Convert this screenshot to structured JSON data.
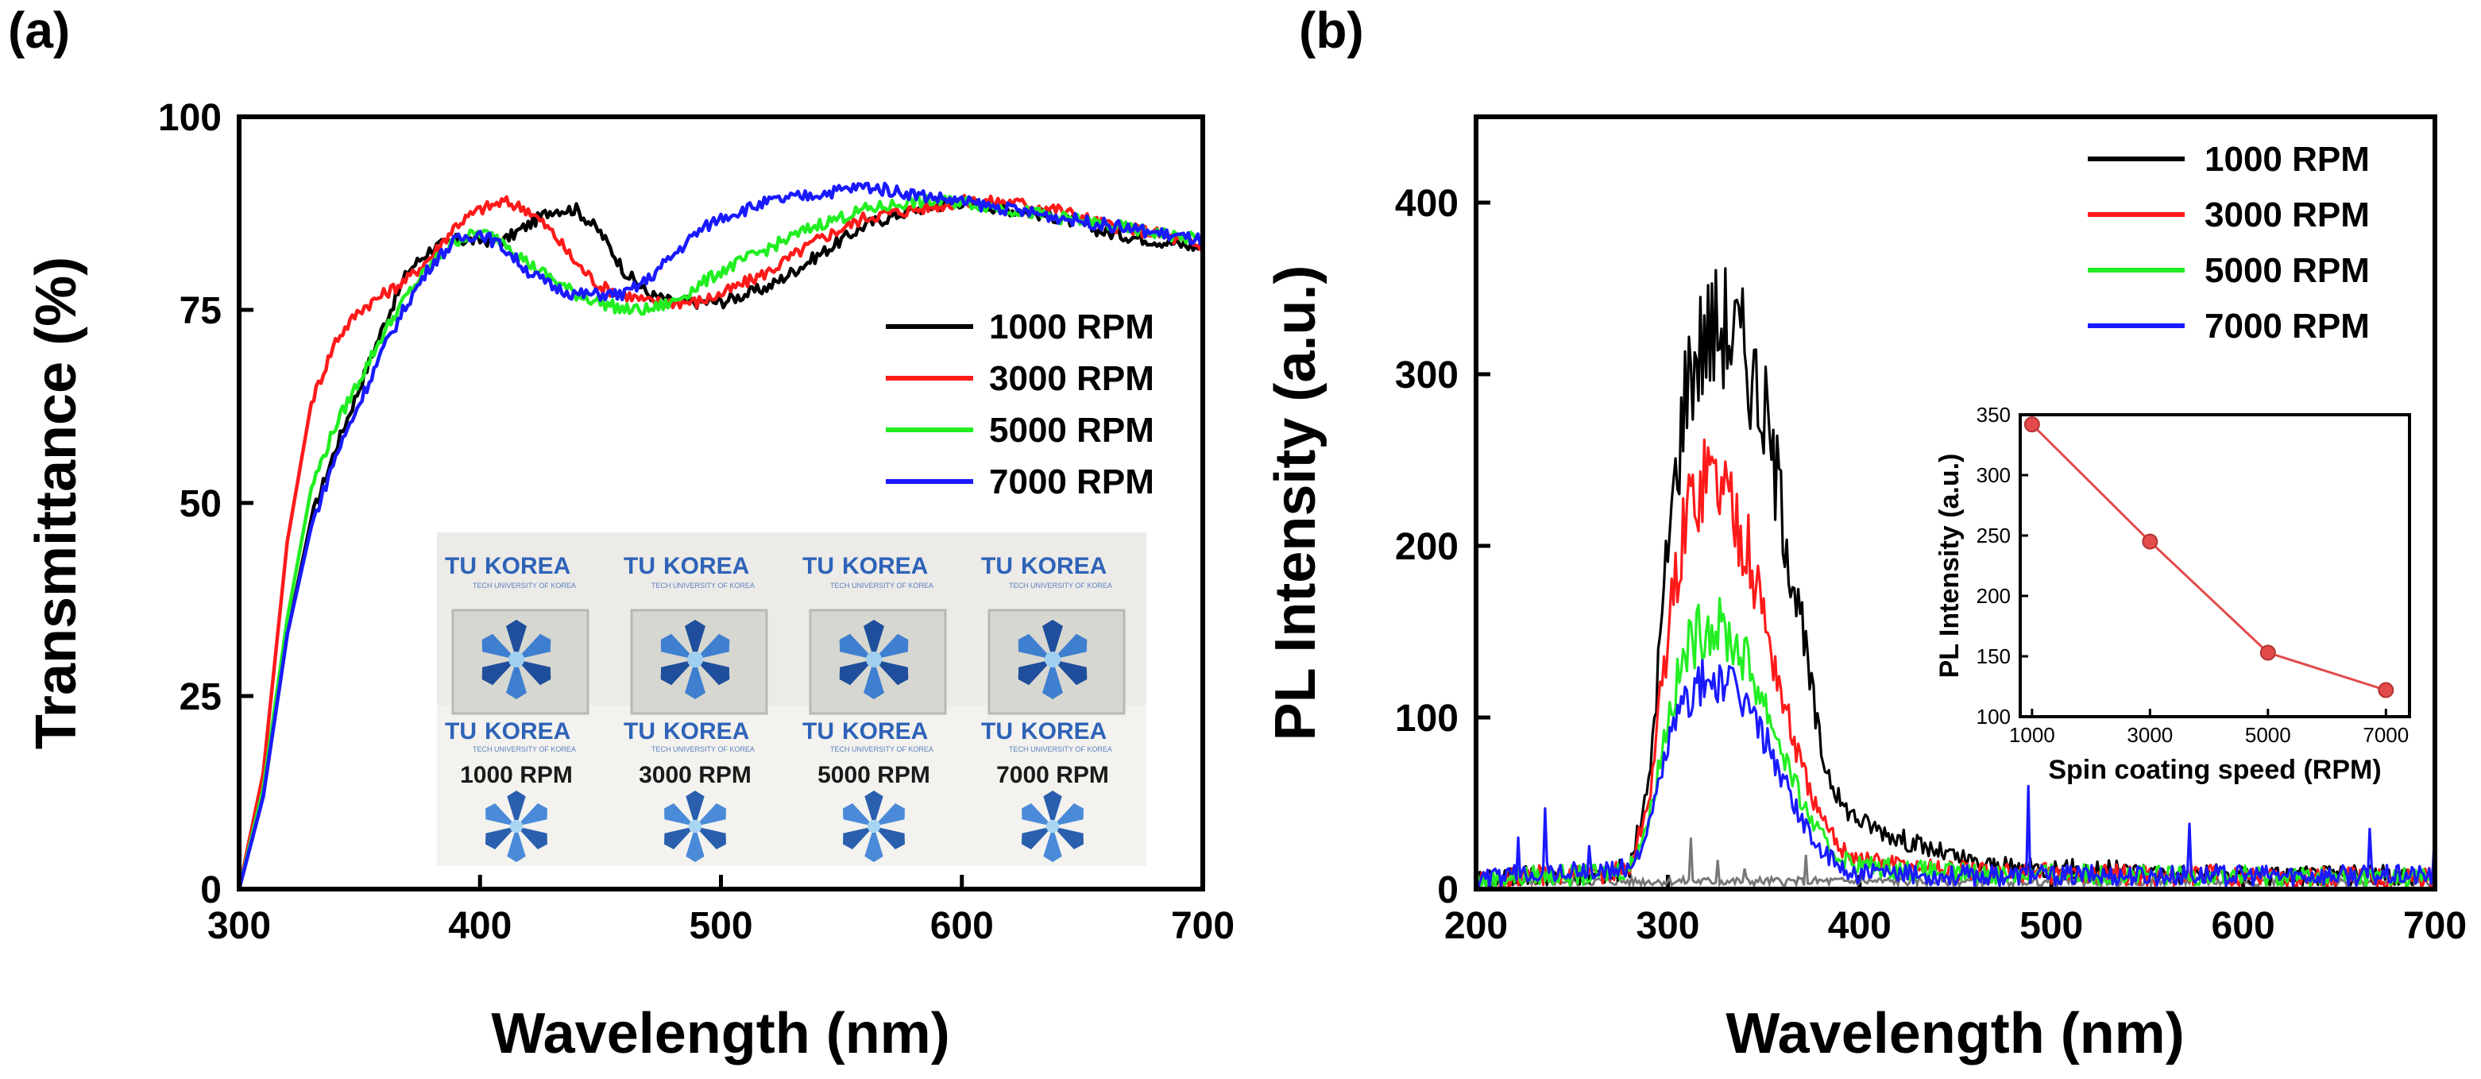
{
  "colors": {
    "series": [
      "#000000",
      "#ff1a1a",
      "#22ee22",
      "#1a1aff"
    ],
    "baseline": "#777777",
    "inset_line": "#e34b4b",
    "logo_blue": "#2e63b8"
  },
  "chart_data": [
    {
      "panel": "(a)",
      "type": "line",
      "xlabel": "Wavelength (nm)",
      "ylabel": "Transmittance (%)",
      "xlim": [
        300,
        700
      ],
      "ylim": [
        0,
        100
      ],
      "xticks": [
        300,
        400,
        500,
        600,
        700
      ],
      "yticks": [
        0,
        25,
        50,
        75,
        100
      ],
      "legend_position": "center-right",
      "series": [
        {
          "name": "1000 RPM",
          "x": [
            300,
            310,
            320,
            330,
            340,
            350,
            360,
            370,
            380,
            390,
            400,
            410,
            420,
            430,
            440,
            450,
            460,
            470,
            480,
            490,
            500,
            520,
            540,
            560,
            580,
            600,
            620,
            640,
            660,
            680,
            700
          ],
          "y": [
            0,
            12,
            33,
            48,
            57,
            65,
            73,
            80,
            83,
            84,
            84,
            84,
            86,
            88,
            88,
            85,
            80,
            77,
            76,
            76,
            76,
            78,
            82,
            86,
            88,
            89,
            88,
            87,
            85,
            84,
            83
          ]
        },
        {
          "name": "3000 RPM",
          "x": [
            300,
            310,
            320,
            330,
            340,
            350,
            360,
            370,
            380,
            390,
            400,
            410,
            420,
            430,
            440,
            450,
            460,
            470,
            480,
            490,
            500,
            520,
            540,
            560,
            580,
            600,
            620,
            640,
            660,
            680,
            700
          ],
          "y": [
            0,
            15,
            45,
            63,
            71,
            75,
            77,
            79,
            82,
            86,
            88,
            89,
            88,
            85,
            81,
            78,
            77,
            76,
            76,
            76,
            77,
            80,
            84,
            87,
            88,
            89,
            89,
            88,
            86,
            85,
            83
          ]
        },
        {
          "name": "5000 RPM",
          "x": [
            300,
            310,
            320,
            330,
            340,
            350,
            360,
            370,
            380,
            390,
            400,
            410,
            420,
            430,
            440,
            450,
            460,
            470,
            480,
            490,
            500,
            520,
            540,
            560,
            580,
            600,
            620,
            640,
            660,
            680,
            700
          ],
          "y": [
            0,
            13,
            35,
            52,
            60,
            66,
            72,
            77,
            81,
            84,
            85,
            84,
            81,
            79,
            77,
            76,
            75,
            75,
            76,
            78,
            80,
            83,
            86,
            88,
            89,
            89,
            88,
            87,
            86,
            85,
            84
          ]
        },
        {
          "name": "7000 RPM",
          "x": [
            300,
            310,
            320,
            330,
            340,
            350,
            360,
            370,
            380,
            390,
            400,
            410,
            420,
            430,
            440,
            450,
            460,
            470,
            480,
            490,
            500,
            520,
            540,
            560,
            580,
            600,
            620,
            640,
            660,
            680,
            700
          ],
          "y": [
            0,
            12,
            33,
            47,
            56,
            63,
            70,
            76,
            81,
            84,
            85,
            83,
            80,
            78,
            77,
            77,
            77,
            79,
            82,
            85,
            87,
            89,
            90,
            91,
            90,
            89,
            88,
            87,
            86,
            85,
            84
          ]
        }
      ],
      "inset_photo": {
        "logo_prefix": "TU",
        "logo_suffix": "KOREA",
        "logo_subtitle": "TECH UNIVERSITY OF KOREA",
        "labels": [
          "1000 RPM",
          "3000 RPM",
          "5000 RPM",
          "7000 RPM"
        ]
      }
    },
    {
      "panel": "(b)",
      "type": "line",
      "xlabel": "Wavelength (nm)",
      "ylabel": "PL Intensity (a.u.)",
      "xlim": [
        200,
        700
      ],
      "ylim": [
        0,
        450
      ],
      "xticks": [
        200,
        300,
        400,
        500,
        600,
        700
      ],
      "yticks": [
        0,
        100,
        200,
        300,
        400
      ],
      "legend_position": "top-right",
      "series": [
        {
          "name": "1000 RPM",
          "x": [
            200,
            230,
            260,
            280,
            290,
            300,
            310,
            320,
            330,
            340,
            350,
            360,
            370,
            380,
            390,
            400,
            420,
            440,
            460,
            480,
            500,
            550,
            600,
            650,
            700
          ],
          "y": [
            5,
            8,
            8,
            12,
            60,
            200,
            300,
            325,
            330,
            315,
            280,
            220,
            150,
            80,
            50,
            40,
            30,
            22,
            15,
            12,
            12,
            10,
            8,
            8,
            8
          ]
        },
        {
          "name": "3000 RPM",
          "x": [
            200,
            230,
            260,
            280,
            290,
            300,
            310,
            320,
            330,
            340,
            350,
            360,
            370,
            380,
            390,
            400,
            420,
            440,
            460,
            480,
            500,
            550,
            600,
            650,
            700
          ],
          "y": [
            5,
            8,
            8,
            12,
            50,
            150,
            220,
            245,
            235,
            205,
            160,
            110,
            70,
            40,
            25,
            18,
            14,
            12,
            10,
            10,
            9,
            8,
            8,
            7,
            7
          ]
        },
        {
          "name": "5000 RPM",
          "x": [
            200,
            230,
            260,
            280,
            290,
            300,
            310,
            320,
            330,
            340,
            350,
            360,
            370,
            380,
            390,
            400,
            420,
            440,
            460,
            480,
            500,
            550,
            600,
            650,
            700
          ],
          "y": [
            5,
            8,
            8,
            12,
            40,
            100,
            140,
            155,
            150,
            135,
            110,
            80,
            50,
            30,
            18,
            14,
            12,
            10,
            9,
            9,
            9,
            8,
            8,
            7,
            7
          ]
        },
        {
          "name": "7000 RPM",
          "x": [
            200,
            230,
            260,
            280,
            290,
            300,
            310,
            320,
            330,
            340,
            350,
            360,
            370,
            380,
            390,
            400,
            420,
            440,
            460,
            480,
            500,
            550,
            600,
            650,
            700
          ],
          "y": [
            5,
            10,
            10,
            12,
            35,
            85,
            112,
            122,
            120,
            110,
            90,
            65,
            40,
            22,
            12,
            9,
            8,
            8,
            8,
            8,
            8,
            8,
            8,
            8,
            8
          ]
        }
      ],
      "spikes": [
        {
          "x": 222,
          "y": 30
        },
        {
          "x": 236,
          "y": 47
        },
        {
          "x": 259,
          "y": 25
        },
        {
          "x": 488,
          "y": 60
        },
        {
          "x": 572,
          "y": 38
        },
        {
          "x": 666,
          "y": 35
        },
        {
          "x": 700,
          "y": 38
        }
      ],
      "baseline_peaks": [
        {
          "x": 312,
          "y": 30
        },
        {
          "x": 326,
          "y": 17
        },
        {
          "x": 340,
          "y": 12
        },
        {
          "x": 372,
          "y": 20
        }
      ],
      "inset": {
        "type": "line",
        "xlabel": "Spin coating speed (RPM)",
        "ylabel": "PL Intensity (a.u.)",
        "x": [
          1000,
          3000,
          5000,
          7000
        ],
        "y": [
          342,
          245,
          153,
          122
        ],
        "xlim": [
          800,
          7400
        ],
        "ylim": [
          100,
          350
        ],
        "xticks": [
          1000,
          3000,
          5000,
          7000
        ],
        "yticks": [
          100,
          150,
          200,
          250,
          300,
          350
        ]
      }
    }
  ]
}
